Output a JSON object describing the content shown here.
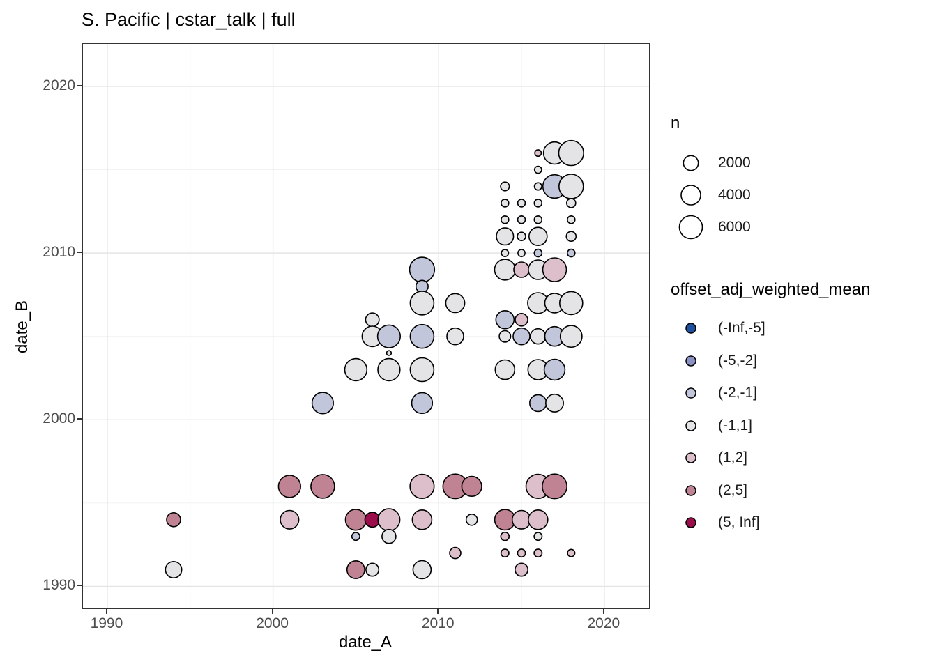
{
  "title": "S. Pacific | cstar_talk | full",
  "legend_size": {
    "title": "n",
    "entries": [
      {
        "label": "2000",
        "n": 2000
      },
      {
        "label": "4000",
        "n": 4000
      },
      {
        "label": "6000",
        "n": 6000
      }
    ]
  },
  "legend_color": {
    "title": "offset_adj_weighted_mean",
    "entries": [
      {
        "label": "(-Inf,-5]",
        "color": "#1d509f"
      },
      {
        "label": "(-5,-2]",
        "color": "#8992c3"
      },
      {
        "label": "(-2,-1]",
        "color": "#c2c6db"
      },
      {
        "label": "(-1,1]",
        "color": "#e4e4e6"
      },
      {
        "label": "(1,2]",
        "color": "#dcbfca"
      },
      {
        "label": "(2,5]",
        "color": "#c08394"
      },
      {
        "label": "(5, Inf]",
        "color": "#9c0d4c"
      }
    ]
  },
  "chart_data": {
    "type": "scatter",
    "title": "S. Pacific | cstar_talk | full",
    "xlabel": "date_A",
    "ylabel": "date_B",
    "xlim": [
      1988.53,
      2022.7
    ],
    "ylim": [
      1988.68,
      2022.55
    ],
    "x_ticks": [
      1990,
      2000,
      2010,
      2020
    ],
    "y_ticks": [
      1990,
      2000,
      2010,
      2020
    ],
    "x_minor": [
      1995,
      2005,
      2015
    ],
    "y_minor": [
      1995,
      2005,
      2015
    ],
    "grid": "on",
    "legend_position": "right",
    "size_scale": {
      "intercept": 2.74,
      "slope": 0.178,
      "legend_values": [
        2000,
        4000,
        6000
      ]
    },
    "point_stroke": "#000000",
    "grid_major_color": "#e4e4e4",
    "grid_minor_color": "#f0f0f0",
    "points": [
      {
        "a": 2016,
        "b": 2016,
        "n": 120,
        "bin": "(1,2]"
      },
      {
        "a": 2017,
        "b": 2016,
        "n": 5500,
        "bin": "(-1,1]"
      },
      {
        "a": 2018,
        "b": 2016,
        "n": 7300,
        "bin": "(-1,1]"
      },
      {
        "a": 2016,
        "b": 2015,
        "n": 170,
        "bin": "(-1,1]"
      },
      {
        "a": 2014,
        "b": 2014,
        "n": 400,
        "bin": "(-1,1]"
      },
      {
        "a": 2016,
        "b": 2014,
        "n": 210,
        "bin": "(-1,1]"
      },
      {
        "a": 2017,
        "b": 2014,
        "n": 6200,
        "bin": "(-2,-1]"
      },
      {
        "a": 2018,
        "b": 2014,
        "n": 6900,
        "bin": "(-1,1]"
      },
      {
        "a": 2014,
        "b": 2013,
        "n": 240,
        "bin": "(-1,1]"
      },
      {
        "a": 2015,
        "b": 2013,
        "n": 240,
        "bin": "(-1,1]"
      },
      {
        "a": 2016,
        "b": 2013,
        "n": 240,
        "bin": "(-1,1]"
      },
      {
        "a": 2018,
        "b": 2013,
        "n": 450,
        "bin": "(-1,1]"
      },
      {
        "a": 2014,
        "b": 2012,
        "n": 240,
        "bin": "(-1,1]"
      },
      {
        "a": 2015,
        "b": 2012,
        "n": 240,
        "bin": "(-1,1]"
      },
      {
        "a": 2016,
        "b": 2012,
        "n": 240,
        "bin": "(-1,1]"
      },
      {
        "a": 2018,
        "b": 2012,
        "n": 240,
        "bin": "(-1,1]"
      },
      {
        "a": 2014,
        "b": 2011,
        "n": 2900,
        "bin": "(-1,1]"
      },
      {
        "a": 2015,
        "b": 2011,
        "n": 340,
        "bin": "(-1,1]"
      },
      {
        "a": 2016,
        "b": 2011,
        "n": 3300,
        "bin": "(-1,1]"
      },
      {
        "a": 2018,
        "b": 2011,
        "n": 570,
        "bin": "(-1,1]"
      },
      {
        "a": 2014,
        "b": 2010,
        "n": 170,
        "bin": "(-1,1]"
      },
      {
        "a": 2015,
        "b": 2010,
        "n": 170,
        "bin": "(-1,1]"
      },
      {
        "a": 2016,
        "b": 2010,
        "n": 240,
        "bin": "(-2,-1]"
      },
      {
        "a": 2018,
        "b": 2010,
        "n": 240,
        "bin": "(-2,-1]"
      },
      {
        "a": 2009,
        "b": 2009,
        "n": 7300,
        "bin": "(-2,-1]"
      },
      {
        "a": 2014,
        "b": 2009,
        "n": 4700,
        "bin": "(-1,1]"
      },
      {
        "a": 2015,
        "b": 2009,
        "n": 2150,
        "bin": "(1,2]"
      },
      {
        "a": 2016,
        "b": 2009,
        "n": 4000,
        "bin": "(-1,1]"
      },
      {
        "a": 2017,
        "b": 2009,
        "n": 6400,
        "bin": "(1,2]"
      },
      {
        "a": 2009,
        "b": 2008,
        "n": 1120,
        "bin": "(-2,-1]"
      },
      {
        "a": 2009,
        "b": 2007,
        "n": 6400,
        "bin": "(-1,1]"
      },
      {
        "a": 2011,
        "b": 2007,
        "n": 3700,
        "bin": "(-1,1]"
      },
      {
        "a": 2016,
        "b": 2007,
        "n": 4700,
        "bin": "(-1,1]"
      },
      {
        "a": 2017,
        "b": 2007,
        "n": 4000,
        "bin": "(-1,1]"
      },
      {
        "a": 2018,
        "b": 2007,
        "n": 6000,
        "bin": "(-1,1]"
      },
      {
        "a": 2006,
        "b": 2006,
        "n": 1530,
        "bin": "(-1,1]"
      },
      {
        "a": 2014,
        "b": 2006,
        "n": 3300,
        "bin": "(-2,-1]"
      },
      {
        "a": 2015,
        "b": 2006,
        "n": 1230,
        "bin": "(1,2]"
      },
      {
        "a": 2006,
        "b": 2005,
        "n": 4500,
        "bin": "(-1,1]"
      },
      {
        "a": 2007,
        "b": 2005,
        "n": 5800,
        "bin": "(-2,-1]"
      },
      {
        "a": 2009,
        "b": 2005,
        "n": 6400,
        "bin": "(-2,-1]"
      },
      {
        "a": 2011,
        "b": 2005,
        "n": 2700,
        "bin": "(-1,1]"
      },
      {
        "a": 2014,
        "b": 2005,
        "n": 950,
        "bin": "(-1,1]"
      },
      {
        "a": 2015,
        "b": 2005,
        "n": 2700,
        "bin": "(-2,-1]"
      },
      {
        "a": 2016,
        "b": 2005,
        "n": 2150,
        "bin": "(-1,1]"
      },
      {
        "a": 2017,
        "b": 2005,
        "n": 4000,
        "bin": "(-2,-1]"
      },
      {
        "a": 2018,
        "b": 2005,
        "n": 5200,
        "bin": "(-1,1]"
      },
      {
        "a": 2007,
        "b": 2004,
        "n": 15,
        "bin": "(-1,1]"
      },
      {
        "a": 2005,
        "b": 2003,
        "n": 5500,
        "bin": "(-1,1]"
      },
      {
        "a": 2007,
        "b": 2003,
        "n": 5500,
        "bin": "(-1,1]"
      },
      {
        "a": 2009,
        "b": 2003,
        "n": 6400,
        "bin": "(-1,1]"
      },
      {
        "a": 2014,
        "b": 2003,
        "n": 4000,
        "bin": "(-1,1]"
      },
      {
        "a": 2016,
        "b": 2003,
        "n": 4400,
        "bin": "(-1,1]"
      },
      {
        "a": 2017,
        "b": 2003,
        "n": 4700,
        "bin": "(-2,-1]"
      },
      {
        "a": 2003,
        "b": 2001,
        "n": 5000,
        "bin": "(-2,-1]"
      },
      {
        "a": 2009,
        "b": 2001,
        "n": 4700,
        "bin": "(-2,-1]"
      },
      {
        "a": 2016,
        "b": 2001,
        "n": 2700,
        "bin": "(-2,-1]"
      },
      {
        "a": 2017,
        "b": 2001,
        "n": 3100,
        "bin": "(-1,1]"
      },
      {
        "a": 2001,
        "b": 1996,
        "n": 5500,
        "bin": "(2,5]"
      },
      {
        "a": 2003,
        "b": 1996,
        "n": 6400,
        "bin": "(2,5]"
      },
      {
        "a": 2009,
        "b": 1996,
        "n": 6700,
        "bin": "(1,2]"
      },
      {
        "a": 2011,
        "b": 1996,
        "n": 7100,
        "bin": "(2,5]"
      },
      {
        "a": 2012,
        "b": 1996,
        "n": 4200,
        "bin": "(2,5]"
      },
      {
        "a": 2016,
        "b": 1996,
        "n": 6700,
        "bin": "(1,2]"
      },
      {
        "a": 2017,
        "b": 1996,
        "n": 7100,
        "bin": "(2,5]"
      },
      {
        "a": 1994,
        "b": 1994,
        "n": 1660,
        "bin": "(2,5]"
      },
      {
        "a": 2001,
        "b": 1994,
        "n": 3500,
        "bin": "(1,2]"
      },
      {
        "a": 2005,
        "b": 1994,
        "n": 4700,
        "bin": "(2,5]"
      },
      {
        "a": 2006,
        "b": 1994,
        "n": 2000,
        "bin": "(5, Inf]"
      },
      {
        "a": 2007,
        "b": 1994,
        "n": 5300,
        "bin": "(1,2]"
      },
      {
        "a": 2009,
        "b": 1994,
        "n": 4000,
        "bin": "(1,2]"
      },
      {
        "a": 2012,
        "b": 1994,
        "n": 870,
        "bin": "(-1,1]"
      },
      {
        "a": 2014,
        "b": 1994,
        "n": 4500,
        "bin": "(2,5]"
      },
      {
        "a": 2015,
        "b": 1994,
        "n": 3500,
        "bin": "(1,2]"
      },
      {
        "a": 2016,
        "b": 1994,
        "n": 4000,
        "bin": "(1,2]"
      },
      {
        "a": 2005,
        "b": 1993,
        "n": 280,
        "bin": "(-2,-1]"
      },
      {
        "a": 2007,
        "b": 1993,
        "n": 1660,
        "bin": "(-1,1]"
      },
      {
        "a": 2014,
        "b": 1993,
        "n": 340,
        "bin": "(1,2]"
      },
      {
        "a": 2016,
        "b": 1993,
        "n": 280,
        "bin": "(-1,1]"
      },
      {
        "a": 2011,
        "b": 1992,
        "n": 870,
        "bin": "(1,2]"
      },
      {
        "a": 2014,
        "b": 1992,
        "n": 280,
        "bin": "(1,2]"
      },
      {
        "a": 2015,
        "b": 1992,
        "n": 280,
        "bin": "(1,2]"
      },
      {
        "a": 2016,
        "b": 1992,
        "n": 280,
        "bin": "(1,2]"
      },
      {
        "a": 2018,
        "b": 1992,
        "n": 210,
        "bin": "(1,2]"
      },
      {
        "a": 1994,
        "b": 1991,
        "n": 2550,
        "bin": "(-1,1]"
      },
      {
        "a": 2005,
        "b": 1991,
        "n": 3100,
        "bin": "(2,5]"
      },
      {
        "a": 2006,
        "b": 1991,
        "n": 1330,
        "bin": "(-1,1]"
      },
      {
        "a": 2009,
        "b": 1991,
        "n": 3300,
        "bin": "(-1,1]"
      },
      {
        "a": 2015,
        "b": 1991,
        "n": 1330,
        "bin": "(1,2]"
      }
    ]
  }
}
